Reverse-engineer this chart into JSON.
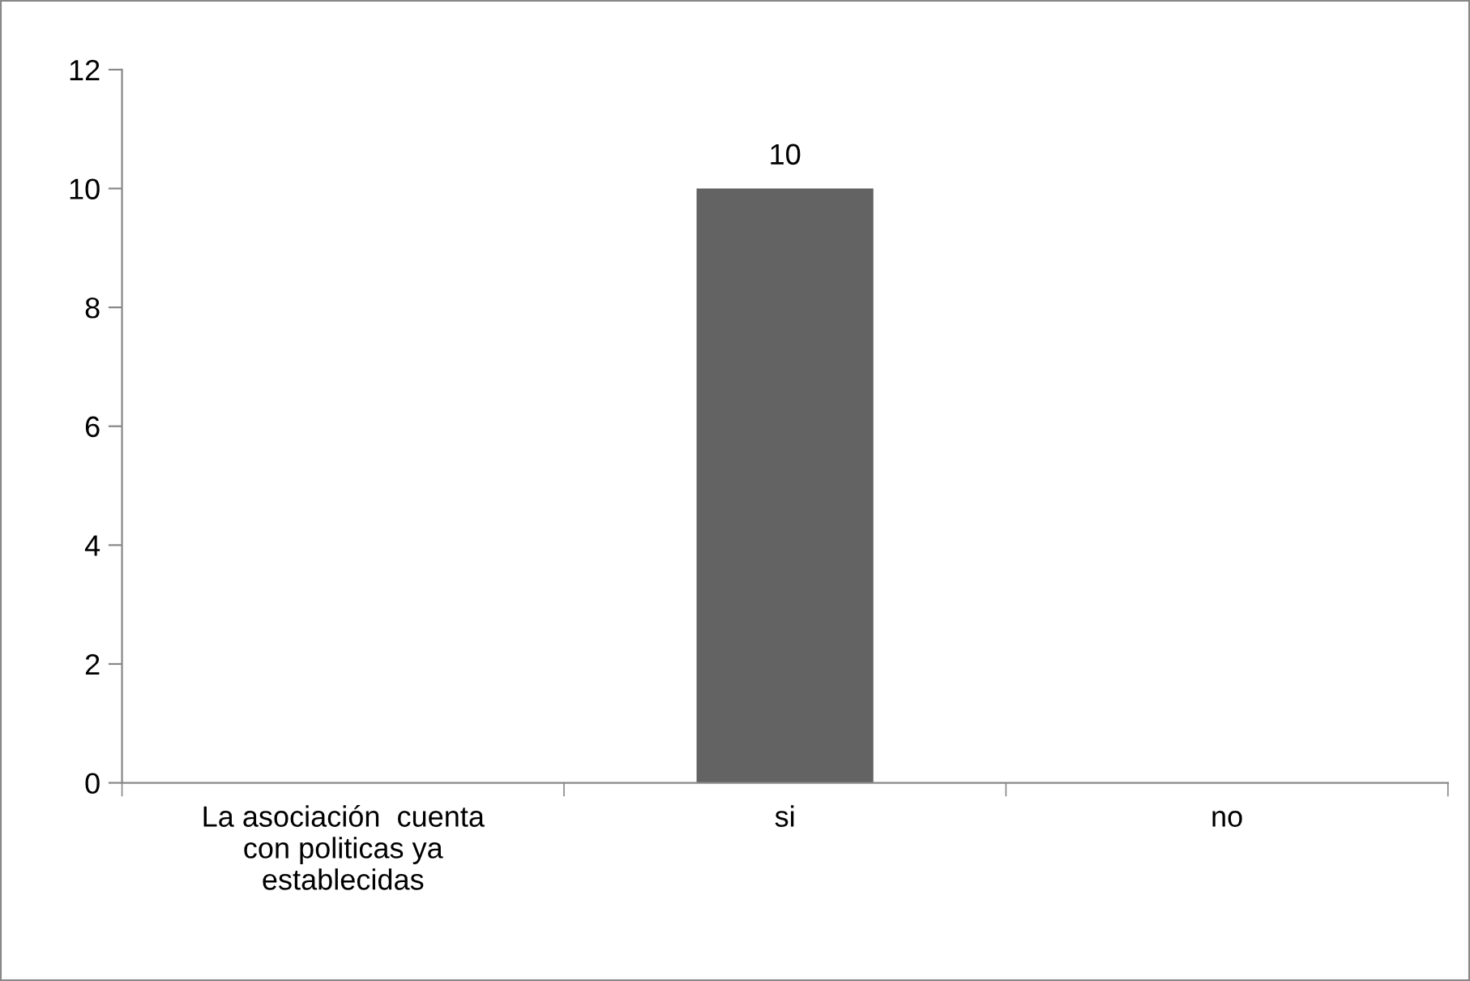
{
  "chart_data": {
    "type": "bar",
    "categories": [
      "La asociación  cuenta con politicas ya establecidas",
      "si",
      "no"
    ],
    "values": [
      null,
      10,
      null
    ],
    "value_labels": [
      null,
      "10",
      null
    ],
    "color": "#636363",
    "ylim": [
      0,
      12
    ],
    "yticks": [
      0,
      2,
      4,
      6,
      8,
      10,
      12
    ],
    "grid": false,
    "legend": false
  }
}
